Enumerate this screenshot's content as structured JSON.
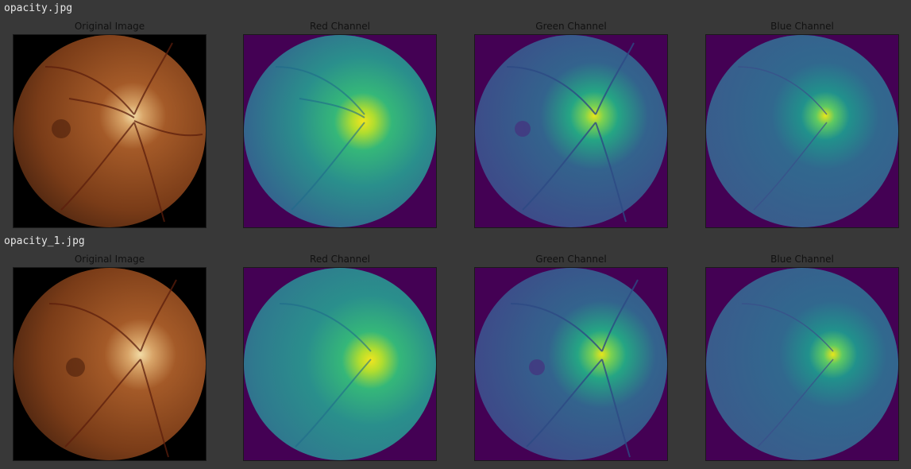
{
  "rows": [
    {
      "file_name": "opacity.jpg",
      "panels": [
        {
          "title": "Original Image",
          "kind": "rgb"
        },
        {
          "title": "Red Channel",
          "kind": "red"
        },
        {
          "title": "Green Channel",
          "kind": "green"
        },
        {
          "title": "Blue Channel",
          "kind": "blue"
        }
      ]
    },
    {
      "file_name": "opacity_1.jpg",
      "panels": [
        {
          "title": "Original Image",
          "kind": "rgb"
        },
        {
          "title": "Red Channel",
          "kind": "red"
        },
        {
          "title": "Green Channel",
          "kind": "green"
        },
        {
          "title": "Blue Channel",
          "kind": "blue"
        }
      ]
    }
  ],
  "colors": {
    "background": "#383838",
    "viridis_min": "#440154",
    "fundus_dark": "#5a2a12",
    "fundus_mid": "#8a4a22",
    "optic_disc": "#f0d8a0"
  }
}
